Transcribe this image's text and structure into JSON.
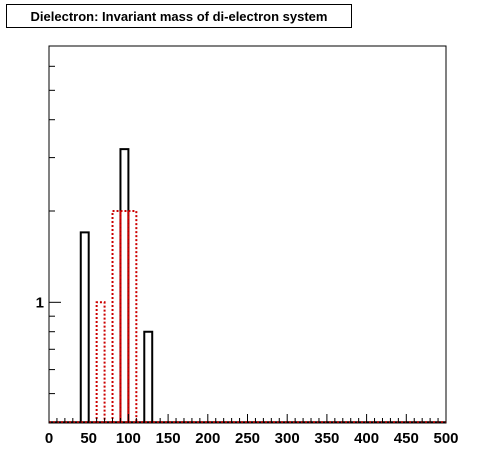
{
  "chart_data": {
    "type": "bar",
    "title": "Dielectron: Invariant mass of di-electron system",
    "xlabel": "",
    "ylabel": "",
    "xlim": [
      0,
      500
    ],
    "ylog": true,
    "ylim": [
      0.4,
      7.0
    ],
    "x_ticks": [
      0,
      50,
      100,
      150,
      200,
      250,
      300,
      350,
      400,
      450,
      500
    ],
    "x_tick_labels": [
      "0",
      "50",
      "100",
      "150",
      "200",
      "250",
      "300",
      "350",
      "400",
      "450",
      "500"
    ],
    "y_tick_labels": [
      {
        "value": 1,
        "label": "1"
      }
    ],
    "bin_width": 10,
    "series": [
      {
        "color": "#000000",
        "line_style": "solid",
        "bins": [
          {
            "x_low": 40,
            "x_high": 50,
            "value": 1.7
          },
          {
            "x_low": 90,
            "x_high": 100,
            "value": 3.2
          },
          {
            "x_low": 120,
            "x_high": 130,
            "value": 0.8
          }
        ]
      },
      {
        "color": "#cc0000",
        "line_style": "dotted",
        "bins": [
          {
            "x_low": 60,
            "x_high": 70,
            "value": 1.0
          },
          {
            "x_low": 80,
            "x_high": 90,
            "value": 2.0
          },
          {
            "x_low": 90,
            "x_high": 100,
            "value": 2.0
          },
          {
            "x_low": 100,
            "x_high": 110,
            "value": 2.0
          }
        ]
      }
    ],
    "grid": false,
    "legend": "none"
  }
}
